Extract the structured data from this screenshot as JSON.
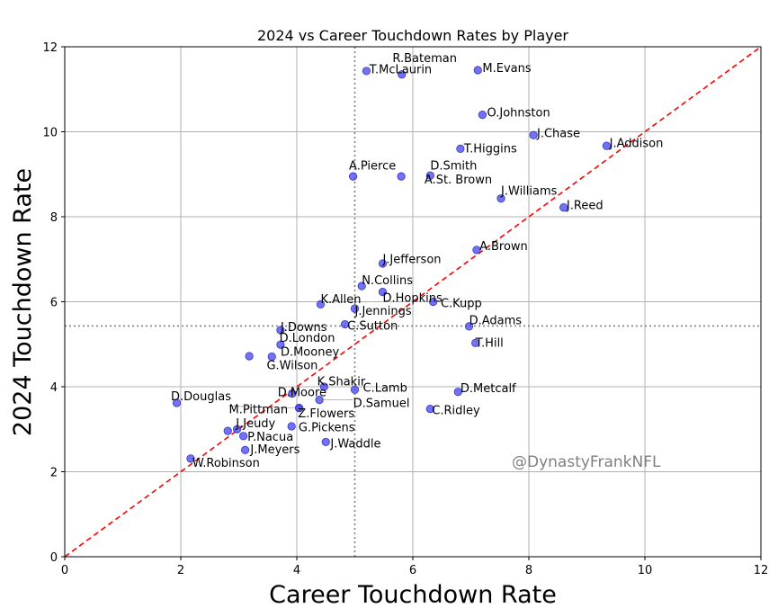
{
  "chart_data": {
    "type": "scatter",
    "title": "2024 vs Career Touchdown Rates by Player",
    "xlabel": "Career Touchdown Rate",
    "ylabel": "2024 Touchdown Rate",
    "xlim": [
      0,
      12
    ],
    "ylim": [
      0,
      12
    ],
    "xticks": [
      0,
      2,
      4,
      6,
      8,
      10,
      12
    ],
    "yticks": [
      0,
      2,
      4,
      6,
      8,
      10,
      12
    ],
    "grid": true,
    "reference_line": "y = x",
    "reference_line_color": "#ff0000",
    "mean_x": 5.0,
    "mean_y": 5.43,
    "point_color": "#4444ee",
    "watermark": "@DynastyFrankNFL",
    "points": [
      {
        "name": "R.Bateman",
        "x": 5.81,
        "y": 11.35,
        "lx": 5.65,
        "ly": 11.72
      },
      {
        "name": "T.McLaurin",
        "x": 5.2,
        "y": 11.43,
        "lx": 5.25,
        "ly": 11.46
      },
      {
        "name": "M.Evans",
        "x": 7.12,
        "y": 11.45,
        "lx": 7.2,
        "ly": 11.49
      },
      {
        "name": "O.Johnston",
        "x": 7.2,
        "y": 10.4,
        "lx": 7.28,
        "ly": 10.44
      },
      {
        "name": "J.Chase",
        "x": 8.08,
        "y": 9.92,
        "lx": 8.14,
        "ly": 9.96
      },
      {
        "name": "J.Addison",
        "x": 9.34,
        "y": 9.67,
        "lx": 9.39,
        "ly": 9.72
      },
      {
        "name": "T.Higgins",
        "x": 6.82,
        "y": 9.6,
        "lx": 6.88,
        "ly": 9.6
      },
      {
        "name": "A.Pierce",
        "x": 4.97,
        "y": 8.95,
        "lx": 4.9,
        "ly": 9.2
      },
      {
        "name": "D.Smith",
        "x": 6.3,
        "y": 8.97,
        "lx": 6.3,
        "ly": 9.2
      },
      {
        "name": "A.St. Brown",
        "x": 5.8,
        "y": 8.95,
        "lx": 6.2,
        "ly": 8.87
      },
      {
        "name": "J.Williams",
        "x": 7.52,
        "y": 8.43,
        "lx": 7.52,
        "ly": 8.6
      },
      {
        "name": "J.Reed",
        "x": 8.6,
        "y": 8.22,
        "lx": 8.65,
        "ly": 8.26
      },
      {
        "name": "A.Brown",
        "x": 7.1,
        "y": 7.22,
        "lx": 7.15,
        "ly": 7.3
      },
      {
        "name": "J.Jefferson",
        "x": 5.48,
        "y": 6.9,
        "lx": 5.48,
        "ly": 7.0
      },
      {
        "name": "N.Collins",
        "x": 5.12,
        "y": 6.37,
        "lx": 5.12,
        "ly": 6.5
      },
      {
        "name": "D.Hopkins",
        "x": 5.48,
        "y": 6.23,
        "lx": 5.48,
        "ly": 6.08
      },
      {
        "name": "C.Kupp",
        "x": 6.35,
        "y": 6.0,
        "lx": 6.48,
        "ly": 5.96
      },
      {
        "name": "K.Allen",
        "x": 4.41,
        "y": 5.94,
        "lx": 4.41,
        "ly": 6.05
      },
      {
        "name": "J.Jennings",
        "x": 5.0,
        "y": 5.84,
        "lx": 5.0,
        "ly": 5.78
      },
      {
        "name": "J.Downs",
        "x": 3.72,
        "y": 5.33,
        "lx": 3.72,
        "ly": 5.4
      },
      {
        "name": "C.Sutton",
        "x": 4.83,
        "y": 5.47,
        "lx": 4.87,
        "ly": 5.43
      },
      {
        "name": "D.Adams",
        "x": 6.97,
        "y": 5.42,
        "lx": 6.97,
        "ly": 5.56
      },
      {
        "name": "D.London",
        "x": 3.72,
        "y": 4.99,
        "lx": 3.7,
        "ly": 5.14
      },
      {
        "name": "T.Hill",
        "x": 7.08,
        "y": 5.03,
        "lx": 7.08,
        "ly": 5.03
      },
      {
        "name": "D.Mooney",
        "x": 3.57,
        "y": 4.71,
        "lx": 3.72,
        "ly": 4.81
      },
      {
        "name": "G.Wilson",
        "x": 3.18,
        "y": 4.72,
        "lx": 3.48,
        "ly": 4.5
      },
      {
        "name": "K.Shakir",
        "x": 4.47,
        "y": 4.0,
        "lx": 4.35,
        "ly": 4.12
      },
      {
        "name": "C.Lamb",
        "x": 5.0,
        "y": 3.93,
        "lx": 5.14,
        "ly": 3.97
      },
      {
        "name": "D.Metcalf",
        "x": 6.78,
        "y": 3.88,
        "lx": 6.82,
        "ly": 3.96
      },
      {
        "name": "D.Douglas",
        "x": 1.93,
        "y": 3.62,
        "lx": 1.83,
        "ly": 3.77
      },
      {
        "name": "D.Moore",
        "x": 3.92,
        "y": 3.84,
        "lx": 3.67,
        "ly": 3.86
      },
      {
        "name": "D.Samuel",
        "x": 4.39,
        "y": 3.69,
        "lx": 4.97,
        "ly": 3.61
      },
      {
        "name": "M.Pittman",
        "x": 4.04,
        "y": 3.5,
        "lx": 2.83,
        "ly": 3.46
      },
      {
        "name": "Z.Flowers",
        "x": 4.04,
        "y": 3.5,
        "lx": 4.02,
        "ly": 3.37
      },
      {
        "name": "C.Ridley",
        "x": 6.3,
        "y": 3.48,
        "lx": 6.33,
        "ly": 3.44
      },
      {
        "name": "J.Jeudy",
        "x": 2.97,
        "y": 3.0,
        "lx": 2.95,
        "ly": 3.13
      },
      {
        "name": "G.Pickens",
        "x": 3.91,
        "y": 3.07,
        "lx": 4.03,
        "ly": 3.04
      },
      {
        "name": "P.Nacua",
        "x": 3.08,
        "y": 2.84,
        "lx": 3.15,
        "ly": 2.82
      },
      {
        "name": "J.Jeudy_pt2",
        "x": 2.81,
        "y": 2.96,
        "lx": 0,
        "ly": 0
      },
      {
        "name": "J.Meyers",
        "x": 3.11,
        "y": 2.51,
        "lx": 3.2,
        "ly": 2.52
      },
      {
        "name": "J.Waddle",
        "x": 4.5,
        "y": 2.7,
        "lx": 4.58,
        "ly": 2.66
      },
      {
        "name": "W.Robinson",
        "x": 2.17,
        "y": 2.31,
        "lx": 2.2,
        "ly": 2.2
      }
    ]
  }
}
